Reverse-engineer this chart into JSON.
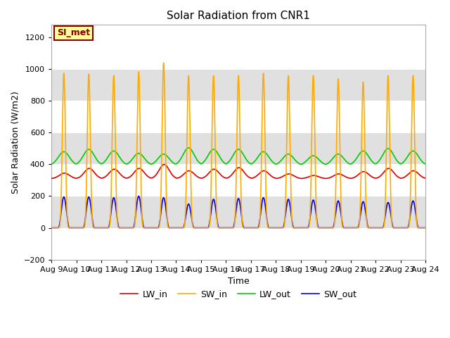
{
  "title": "Solar Radiation from CNR1",
  "xlabel": "Time",
  "ylabel": "Solar Radiation (W/m2)",
  "ylim": [
    -200,
    1280
  ],
  "yticks": [
    -200,
    0,
    200,
    400,
    600,
    800,
    1000,
    1200
  ],
  "n_days": 15,
  "day_labels": [
    "Aug 9",
    "Aug 10",
    "Aug 11",
    "Aug 12",
    "Aug 13",
    "Aug 14",
    "Aug 15",
    "Aug 16",
    "Aug 17",
    "Aug 18",
    "Aug 19",
    "Aug 20",
    "Aug 21",
    "Aug 22",
    "Aug 23",
    "Aug 24"
  ],
  "colors": {
    "LW_in": "#dd0000",
    "SW_in": "#ffaa00",
    "LW_out": "#00cc00",
    "SW_out": "#0000ee"
  },
  "legend_label": "SI_met",
  "legend_box_bg": "#ffff99",
  "legend_box_edge": "#880000",
  "bg_color": "#ffffff",
  "plot_bg": "#ffffff",
  "band_colors_even": "#ffffff",
  "band_colors_odd": "#e0e0e0",
  "linewidth": 1.2,
  "SW_in_peaks": [
    975,
    970,
    960,
    985,
    1040,
    960,
    960,
    960,
    975,
    960,
    960,
    940,
    920,
    960,
    960
  ],
  "SW_out_peaks": [
    195,
    195,
    190,
    200,
    190,
    150,
    180,
    185,
    190,
    180,
    175,
    170,
    165,
    160,
    170
  ],
  "LW_in_base": 310,
  "LW_in_amplitude": [
    35,
    65,
    60,
    65,
    90,
    50,
    60,
    70,
    50,
    30,
    20,
    30,
    45,
    65,
    50
  ],
  "LW_out_base": 395,
  "LW_out_amplitude": [
    85,
    100,
    90,
    75,
    70,
    110,
    100,
    100,
    85,
    70,
    60,
    70,
    90,
    105,
    90
  ]
}
